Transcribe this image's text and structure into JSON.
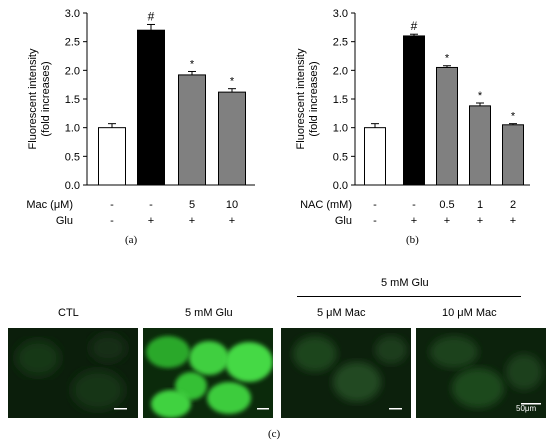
{
  "panels": {
    "a": {
      "label": "(a)"
    },
    "b": {
      "label": "(b)"
    },
    "c": {
      "label": "(c)"
    }
  },
  "chart_data": [
    {
      "type": "bar",
      "ylabel": "Fluorescent intensity\n(fold increases)",
      "ylim": [
        0,
        3.0
      ],
      "yticks": [
        "0.0",
        "0.5",
        "1.0",
        "1.5",
        "2.0",
        "2.5",
        "3.0"
      ],
      "row_labels": [
        "Mac (μM)",
        "Glu"
      ],
      "rows": [
        [
          "-",
          "-",
          "5",
          "10"
        ],
        [
          "-",
          "+",
          "+",
          "+"
        ]
      ],
      "values": [
        1.0,
        2.7,
        1.92,
        1.62
      ],
      "errors": [
        0.07,
        0.1,
        0.06,
        0.06
      ],
      "colors": [
        "#ffffff",
        "#000000",
        "#808080",
        "#808080"
      ],
      "markers": [
        "",
        "#",
        "*",
        "*"
      ],
      "grid": false
    },
    {
      "type": "bar",
      "ylabel": "Fluorescent intensity\n(fold increases)",
      "ylim": [
        0,
        3.0
      ],
      "yticks": [
        "0.0",
        "0.5",
        "1.0",
        "1.5",
        "2.0",
        "2.5",
        "3.0"
      ],
      "row_labels": [
        "NAC (mM)",
        "Glu"
      ],
      "rows": [
        [
          "-",
          "-",
          "0.5",
          "1",
          "2"
        ],
        [
          "-",
          "+",
          "+",
          "+",
          "+"
        ]
      ],
      "values": [
        1.0,
        2.6,
        2.05,
        1.38,
        1.05
      ],
      "errors": [
        0.07,
        0.03,
        0.03,
        0.05,
        0.02
      ],
      "colors": [
        "#ffffff",
        "#000000",
        "#808080",
        "#808080",
        "#808080"
      ],
      "markers": [
        "",
        "#",
        "*",
        "*",
        "*"
      ],
      "grid": false
    }
  ],
  "micrographs": {
    "group_label": "5 mM Glu",
    "images": [
      {
        "label": "CTL"
      },
      {
        "label": "5 mM Glu"
      },
      {
        "label": "5 μM Mac"
      },
      {
        "label": "10 μM Mac"
      }
    ],
    "scale_label": "50μm"
  }
}
